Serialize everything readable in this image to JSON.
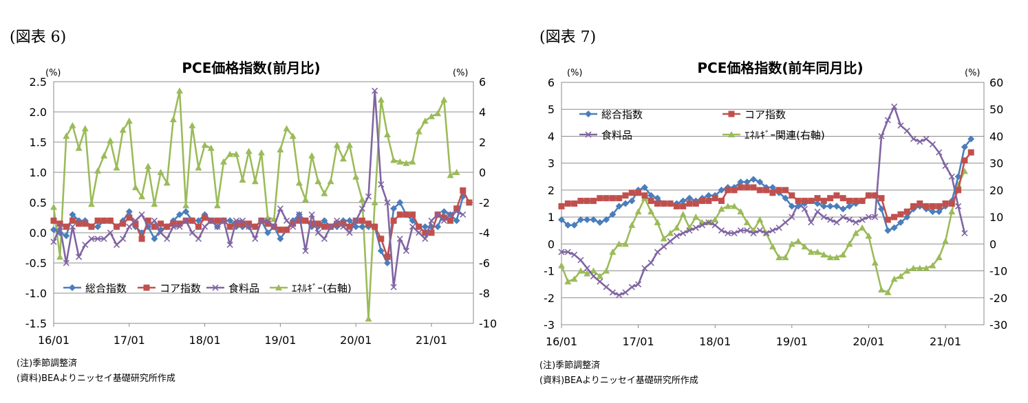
{
  "figures": [
    {
      "label": "(図表 6)",
      "note": "(注)季節調整済",
      "source": "(資料)BEAよりニッセイ基礎研究所作成"
    },
    {
      "label": "(図表 7)",
      "note": "(注)季節調整済",
      "source": "(資料)BEAよりニッセイ基礎研究所作成"
    }
  ],
  "chart_data": [
    {
      "type": "line",
      "title": "PCE価格指数(前月比)",
      "ylabel_left": "(%)",
      "ylabel_right": "(%)",
      "ylim_left": [
        -1.5,
        2.5
      ],
      "ylim_right": [
        -10,
        6
      ],
      "yticks_left": [
        "2.5",
        "2.0",
        "1.5",
        "1.0",
        "0.5",
        "0.0",
        "-0.5",
        "-1.0",
        "-1.5"
      ],
      "yticks_right": [
        "6",
        "4",
        "2",
        "0",
        "-2",
        "-4",
        "-6",
        "-8",
        "-10"
      ],
      "x_tick_labels": [
        "16/01",
        "17/01",
        "18/01",
        "19/01",
        "20/01",
        "21/01"
      ],
      "x_start": "2016-01",
      "grid": true,
      "legend_position": "bottom-left",
      "series": [
        {
          "name": "総合指数",
          "axis": "left",
          "color": "#4a7ebb",
          "marker": "diamond",
          "values": [
            0.05,
            0.0,
            -0.05,
            0.3,
            0.2,
            0.2,
            0.1,
            0.1,
            0.2,
            0.2,
            0.1,
            0.2,
            0.35,
            0.1,
            0.0,
            0.1,
            -0.1,
            0.05,
            0.1,
            0.2,
            0.3,
            0.35,
            0.2,
            0.2,
            0.3,
            0.2,
            0.1,
            0.2,
            0.2,
            0.1,
            0.1,
            0.1,
            0.1,
            0.2,
            0.0,
            0.1,
            -0.1,
            0.05,
            0.2,
            0.3,
            0.2,
            0.1,
            0.1,
            0.2,
            0.1,
            0.1,
            0.2,
            0.2,
            0.1,
            0.1,
            0.1,
            0.1,
            -0.3,
            -0.5,
            0.4,
            0.5,
            0.3,
            0.2,
            0.1,
            0.1,
            0.1,
            0.1,
            0.35,
            0.3,
            0.2,
            0.6
          ]
        },
        {
          "name": "コア指数",
          "axis": "left",
          "color": "#c0504d",
          "marker": "square",
          "values": [
            0.2,
            0.15,
            0.1,
            0.2,
            0.15,
            0.15,
            0.1,
            0.2,
            0.2,
            0.2,
            0.1,
            0.15,
            0.25,
            0.15,
            -0.1,
            0.2,
            0.1,
            0.15,
            0.1,
            0.15,
            0.15,
            0.2,
            0.2,
            0.1,
            0.25,
            0.2,
            0.2,
            0.2,
            0.1,
            0.15,
            0.15,
            0.15,
            0.1,
            0.2,
            0.15,
            0.1,
            0.05,
            0.05,
            0.15,
            0.2,
            0.2,
            0.15,
            0.15,
            0.1,
            0.1,
            0.15,
            0.15,
            0.1,
            0.2,
            0.2,
            0.15,
            0.1,
            -0.1,
            -0.4,
            0.2,
            0.3,
            0.3,
            0.3,
            0.1,
            0.0,
            0.0,
            0.3,
            0.25,
            0.2,
            0.4,
            0.7,
            0.5
          ]
        },
        {
          "name": "食料品",
          "axis": "left",
          "color": "#8064a2",
          "marker": "x",
          "values": [
            -0.15,
            0.1,
            -0.5,
            0.1,
            -0.4,
            -0.2,
            -0.1,
            -0.1,
            -0.1,
            0.0,
            -0.2,
            -0.1,
            0.1,
            0.2,
            0.3,
            0.1,
            0.2,
            0.0,
            -0.1,
            0.1,
            0.1,
            0.2,
            0.0,
            -0.1,
            0.1,
            0.2,
            0.1,
            0.2,
            -0.2,
            0.2,
            0.2,
            0.1,
            -0.1,
            0.2,
            0.2,
            0.1,
            0.4,
            0.2,
            0.1,
            0.3,
            -0.3,
            0.3,
            0.0,
            -0.1,
            0.1,
            0.2,
            0.1,
            0.0,
            0.2,
            0.4,
            0.6,
            2.35,
            0.8,
            0.5,
            -0.9,
            -0.1,
            -0.3,
            0.1,
            0.0,
            -0.1,
            0.2,
            0.3,
            0.2,
            0.3,
            0.35,
            0.3
          ]
        },
        {
          "name": "ｴﾈﾙｷﾞｰ(右軸)",
          "axis": "right",
          "color": "#9bbb59",
          "marker": "triangle",
          "values": [
            -2.3,
            -5.6,
            2.4,
            3.1,
            1.6,
            2.9,
            -2.1,
            0.1,
            1.1,
            2.1,
            0.3,
            2.8,
            3.4,
            -1.0,
            -1.6,
            0.4,
            -2.1,
            0.0,
            -0.7,
            3.5,
            5.4,
            -2.2,
            3.1,
            0.3,
            1.8,
            1.6,
            -2.2,
            0.7,
            1.2,
            1.2,
            -0.5,
            1.4,
            -0.6,
            1.3,
            -3.0,
            -3.1,
            1.5,
            2.9,
            2.4,
            -0.7,
            -1.8,
            1.1,
            -0.6,
            -1.4,
            -0.6,
            1.8,
            0.9,
            1.8,
            -0.3,
            -1.8,
            -9.7,
            -2.0,
            4.8,
            2.5,
            0.8,
            0.7,
            0.6,
            0.7,
            2.7,
            3.4,
            3.7,
            3.9,
            4.8,
            -0.2,
            0.0
          ]
        }
      ]
    },
    {
      "type": "line",
      "title": "PCE価格指数(前年同月比)",
      "ylabel_left": "(%)",
      "ylabel_right": "(%)",
      "ylim_left": [
        -3,
        6
      ],
      "ylim_right": [
        -30,
        60
      ],
      "yticks_left": [
        "6",
        "5",
        "4",
        "3",
        "2",
        "1",
        "0",
        "-1",
        "-2",
        "-3"
      ],
      "yticks_right": [
        "60",
        "50",
        "40",
        "30",
        "20",
        "10",
        "0",
        "-10",
        "-20",
        "-30"
      ],
      "x_tick_labels": [
        "16/01",
        "17/01",
        "18/01",
        "19/01",
        "20/01",
        "21/01"
      ],
      "x_start": "2016-01",
      "grid": true,
      "legend_position": "top-left",
      "series": [
        {
          "name": "総合指数",
          "axis": "left",
          "color": "#4a7ebb",
          "marker": "diamond",
          "values": [
            0.9,
            0.7,
            0.7,
            0.9,
            0.9,
            0.9,
            0.8,
            0.9,
            1.1,
            1.4,
            1.5,
            1.6,
            2.0,
            2.1,
            1.8,
            1.7,
            1.5,
            1.5,
            1.5,
            1.6,
            1.7,
            1.6,
            1.7,
            1.8,
            1.8,
            2.0,
            2.1,
            2.1,
            2.3,
            2.3,
            2.4,
            2.3,
            2.1,
            2.1,
            1.9,
            1.7,
            1.4,
            1.4,
            1.5,
            1.6,
            1.5,
            1.4,
            1.4,
            1.4,
            1.3,
            1.4,
            1.5,
            1.6,
            1.8,
            1.8,
            1.3,
            0.5,
            0.6,
            0.8,
            1.0,
            1.3,
            1.4,
            1.3,
            1.2,
            1.2,
            1.4,
            1.6,
            2.5,
            3.6,
            3.9
          ]
        },
        {
          "name": "コア指数",
          "axis": "left",
          "color": "#c0504d",
          "marker": "square",
          "values": [
            1.4,
            1.5,
            1.5,
            1.6,
            1.6,
            1.6,
            1.7,
            1.7,
            1.7,
            1.7,
            1.8,
            1.9,
            1.9,
            1.8,
            1.6,
            1.5,
            1.5,
            1.5,
            1.4,
            1.4,
            1.5,
            1.5,
            1.6,
            1.6,
            1.7,
            1.6,
            2.0,
            2.0,
            2.1,
            2.1,
            2.1,
            2.0,
            2.0,
            1.9,
            2.0,
            2.0,
            1.8,
            1.6,
            1.6,
            1.6,
            1.7,
            1.6,
            1.7,
            1.8,
            1.7,
            1.6,
            1.6,
            1.6,
            1.8,
            1.8,
            1.7,
            0.9,
            1.0,
            1.1,
            1.2,
            1.4,
            1.5,
            1.4,
            1.4,
            1.4,
            1.5,
            1.5,
            2.0,
            3.1,
            3.4
          ]
        },
        {
          "name": "食料品",
          "axis": "left",
          "color": "#8064a2",
          "marker": "x",
          "values": [
            -0.3,
            -0.3,
            -0.4,
            -0.6,
            -0.9,
            -1.2,
            -1.4,
            -1.6,
            -1.8,
            -1.9,
            -1.8,
            -1.6,
            -1.5,
            -0.9,
            -0.7,
            -0.3,
            -0.1,
            0.1,
            0.3,
            0.4,
            0.5,
            0.6,
            0.7,
            0.8,
            0.7,
            0.5,
            0.4,
            0.4,
            0.5,
            0.5,
            0.4,
            0.5,
            0.4,
            0.5,
            0.6,
            0.8,
            1.0,
            1.5,
            1.3,
            0.8,
            1.2,
            1.0,
            0.9,
            0.8,
            1.0,
            0.9,
            0.8,
            0.9,
            1.0,
            1.0,
            4.0,
            4.6,
            5.1,
            4.4,
            4.2,
            3.9,
            3.8,
            3.9,
            3.7,
            3.4,
            2.9,
            2.5,
            1.4,
            0.4
          ]
        },
        {
          "name": "ｴﾈﾙｷﾞｰ関連(右軸)",
          "axis": "right",
          "color": "#9bbb59",
          "marker": "triangle",
          "values": [
            -8,
            -14,
            -13,
            -10,
            -11,
            -10,
            -12,
            -10,
            -3,
            0,
            0,
            7,
            12,
            17,
            12,
            8,
            2,
            4,
            6,
            11,
            6,
            10,
            8,
            8,
            9,
            13,
            14,
            14,
            12,
            8,
            5,
            9,
            4,
            -1,
            -5,
            -5,
            0,
            1,
            -1,
            -3,
            -3,
            -4,
            -5,
            -5,
            -4,
            0,
            4,
            6,
            3,
            -7,
            -17,
            -18,
            -13,
            -12,
            -10,
            -9,
            -9,
            -9,
            -8,
            -5,
            1,
            12,
            22,
            27
          ]
        }
      ]
    }
  ]
}
